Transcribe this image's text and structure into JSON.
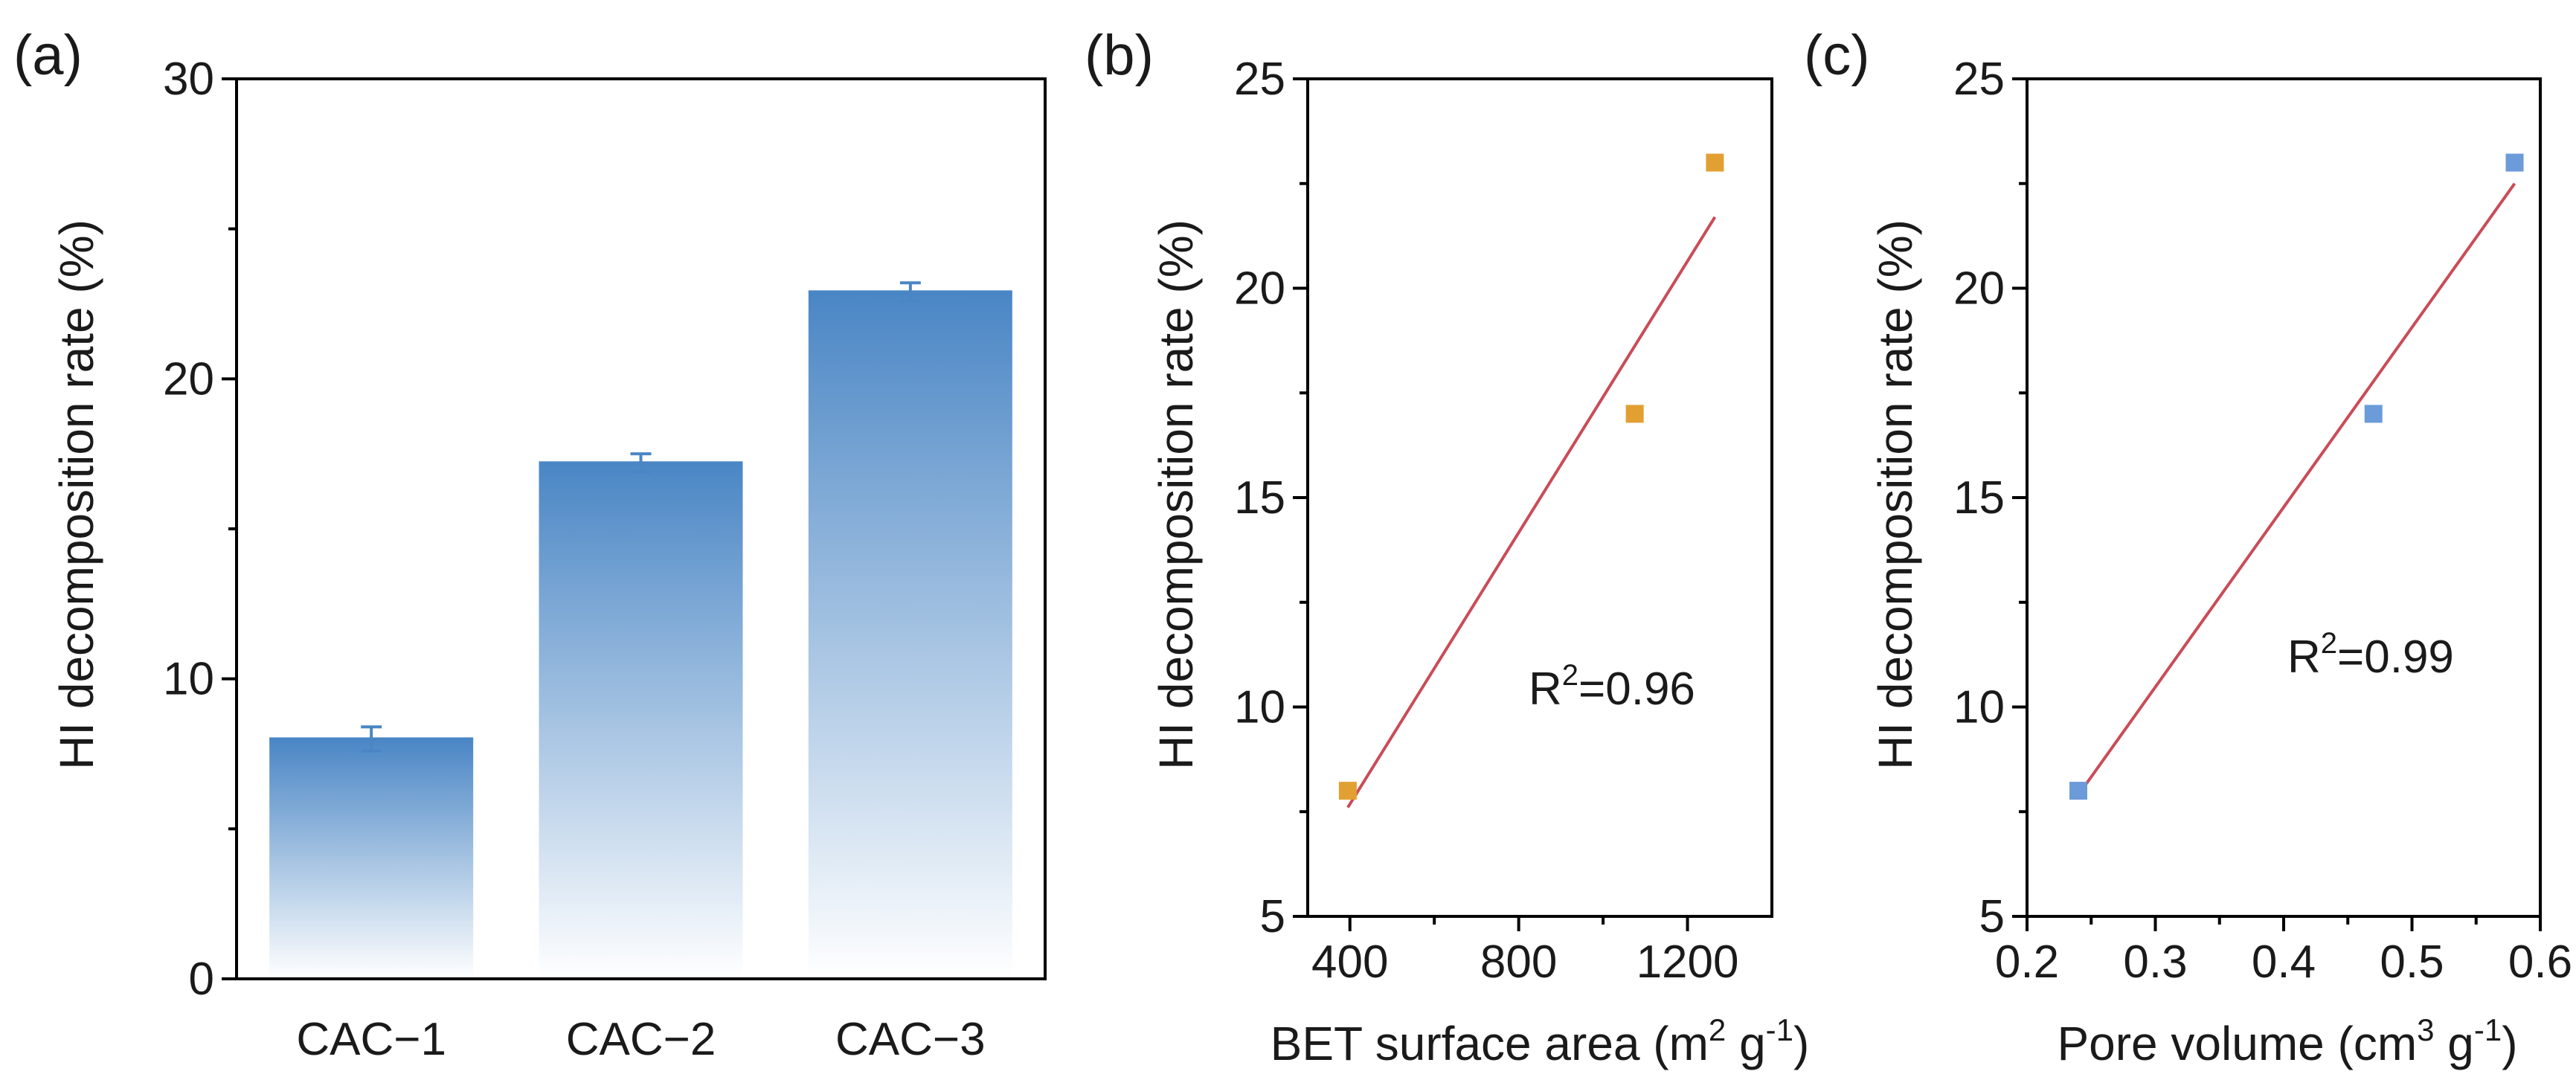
{
  "colors": {
    "bar_top": "#4a86c5",
    "scatter_b": "#e2a033",
    "scatter_c": "#6b9bd8",
    "fit_line": "#c94c58",
    "axis": "#000000"
  },
  "chart_data": [
    {
      "type": "bar",
      "panel": "(a)",
      "title": "",
      "xlabel": "",
      "ylabel": "HI decomposition rate (%)",
      "categories": [
        "CAC−1",
        "CAC−2",
        "CAC−3"
      ],
      "values": [
        8.0,
        17.2,
        22.9
      ],
      "errors": [
        0.4,
        0.3,
        0.3
      ],
      "ylim": [
        0,
        30
      ],
      "yticks": [
        0,
        10,
        20,
        30
      ],
      "grid": false,
      "legend": "none"
    },
    {
      "type": "scatter",
      "panel": "(b)",
      "title": "",
      "xlabel_main": "BET surface area (m",
      "xlabel_sup1": "2",
      "xlabel_mid": " g",
      "xlabel_sup2": "-1",
      "xlabel_end": ")",
      "ylabel": "HI decomposition rate (%)",
      "x": [
        395,
        1075,
        1265
      ],
      "y": [
        8.0,
        17.0,
        23.0
      ],
      "fit_line": {
        "x": [
          395,
          1265
        ],
        "y": [
          7.6,
          21.7
        ]
      },
      "annotation_main": "R",
      "annotation_sup": "2",
      "annotation_end": "=0.96",
      "xlim": [
        300,
        1400
      ],
      "xticks": [
        400,
        800,
        1200
      ],
      "ylim": [
        5,
        25
      ],
      "yticks": [
        5,
        10,
        15,
        20,
        25
      ],
      "grid": false,
      "legend": "none"
    },
    {
      "type": "scatter",
      "panel": "(c)",
      "title": "",
      "xlabel_main": "Pore volume (cm",
      "xlabel_sup1": "3",
      "xlabel_mid": " g",
      "xlabel_sup2": "-1",
      "xlabel_end": ")",
      "ylabel": "HI decomposition rate (%)",
      "x": [
        0.24,
        0.47,
        0.58
      ],
      "y": [
        8.0,
        17.0,
        23.0
      ],
      "fit_line": {
        "x": [
          0.24,
          0.58
        ],
        "y": [
          7.9,
          22.5
        ]
      },
      "annotation_main": "R",
      "annotation_sup": "2",
      "annotation_end": "=0.99",
      "xlim": [
        0.2,
        0.6
      ],
      "xticks": [
        "0.2",
        "0.3",
        "0.4",
        "0.5",
        "0.6"
      ],
      "ylim": [
        5,
        25
      ],
      "yticks": [
        5,
        10,
        15,
        20,
        25
      ],
      "grid": false,
      "legend": "none"
    }
  ]
}
